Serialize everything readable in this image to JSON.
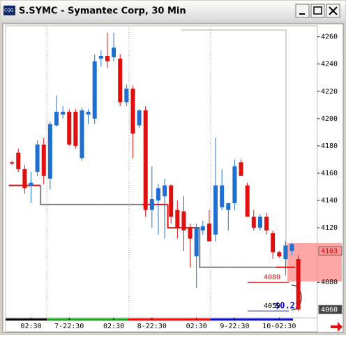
{
  "window": {
    "title": "S.SYMC - Symantec Corp, 30 Min"
  },
  "chart_data": {
    "type": "candlestick",
    "up_color": "#1e6fd0",
    "down_color": "#e01010",
    "open": [
      4168,
      4175,
      4163,
      4151,
      4161,
      4181,
      4156,
      4195,
      4203,
      4205,
      4205,
      4171,
      4203,
      4200,
      4244,
      4246,
      4245,
      4244,
      4212,
      4222,
      4195,
      4206,
      4133,
      4140,
      4143,
      4151,
      4133,
      4132,
      4120,
      4099,
      4118,
      4123,
      4115,
      4135,
      4133,
      4138,
      4168,
      4151,
      4128,
      4120,
      4128,
      4116,
      4102,
      4097,
      4103,
      4097
    ],
    "high": [
      4169,
      4178,
      4166,
      4161,
      4184,
      4186,
      4198,
      4217,
      4209,
      4207,
      4207,
      4208,
      4207,
      4247,
      4250,
      4263,
      4263,
      4247,
      4225,
      4224,
      4207,
      4209,
      4165,
      4152,
      4156,
      4152,
      4140,
      4143,
      4123,
      4123,
      4125,
      4133,
      4186,
      4163,
      4138,
      4170,
      4170,
      4153,
      4133,
      4130,
      4131,
      4118,
      4103,
      4110,
      4109,
      4100
    ],
    "low": [
      4166,
      4161,
      4145,
      4138,
      4158,
      4152,
      4148,
      4194,
      4200,
      4180,
      4178,
      4169,
      4196,
      4196,
      4238,
      4237,
      4242,
      4209,
      4209,
      4171,
      4193,
      4128,
      4120,
      4115,
      4112,
      4123,
      4112,
      4103,
      4091,
      4076,
      4115,
      4110,
      4110,
      4133,
      4118,
      4133,
      4158,
      4128,
      4118,
      4118,
      4115,
      4097,
      4098,
      4085,
      4100,
      4059
    ],
    "close": [
      4167,
      4163,
      4149,
      4153,
      4181,
      4158,
      4196,
      4205,
      4205,
      4181,
      4180,
      4206,
      4205,
      4242,
      4246,
      4242,
      4252,
      4212,
      4222,
      4189,
      4206,
      4133,
      4141,
      4149,
      4151,
      4128,
      4120,
      4118,
      4112,
      4120,
      4121,
      4110,
      4151,
      4151,
      4138,
      4165,
      4158,
      4128,
      4120,
      4128,
      4118,
      4102,
      4099,
      4107,
      4108,
      4060
    ],
    "stop": [
      4151,
      4151,
      4151,
      4151,
      4151,
      4137,
      4137,
      4137,
      4137,
      4137,
      4137,
      4137,
      4137,
      4137,
      4137,
      4137,
      4137,
      4137,
      4137,
      4137,
      4137,
      4137,
      4137,
      4137,
      4137,
      4120,
      4120,
      4120,
      4120,
      4120,
      4091,
      4091,
      4091,
      4091,
      4091,
      4091,
      4091,
      4091,
      4091,
      4091,
      4091,
      4091,
      4091,
      4091,
      4091,
      null
    ],
    "stop_colors": [
      "#e01010",
      "#e01010",
      "#e01010",
      "#e01010",
      "#e01010",
      "#808080",
      "#808080",
      "#808080",
      "#808080",
      "#808080",
      "#808080",
      "#808080",
      "#808080",
      "#808080",
      "#808080",
      "#808080",
      "#808080",
      "#808080",
      "#808080",
      "#808080",
      "#808080",
      "#e01010",
      "#e01010",
      "#e01010",
      "#e01010",
      "#e01010",
      "#e01010",
      "#e01010",
      "#e01010",
      "#e01010",
      "#808080",
      "#808080",
      "#808080",
      "#808080",
      "#808080",
      "#808080",
      "#808080",
      "#808080",
      "#808080",
      "#808080",
      "#808080",
      "#808080",
      "#e01010",
      "#e01010",
      "#e01010",
      "#808080"
    ],
    "ylim": [
      4054,
      4268
    ],
    "yticks": [
      4260,
      4240,
      4220,
      4200,
      4180,
      4160,
      4140,
      4120,
      4080
    ],
    "xlim": [
      -1,
      48
    ],
    "xticks": [
      {
        "value": 3,
        "label": "02:30"
      },
      {
        "value": 9,
        "label": "7-22:30"
      },
      {
        "value": 16,
        "label": "02:30"
      },
      {
        "value": 22,
        "label": "8-22:30"
      },
      {
        "value": 29,
        "label": "02:30"
      },
      {
        "value": 35,
        "label": "9-22:30"
      },
      {
        "value": 42,
        "label": "10-02:30"
      }
    ],
    "price_markers": [
      4103,
      4060
    ],
    "levels": [
      4080,
      4059
    ],
    "change_label": "$0.21"
  }
}
